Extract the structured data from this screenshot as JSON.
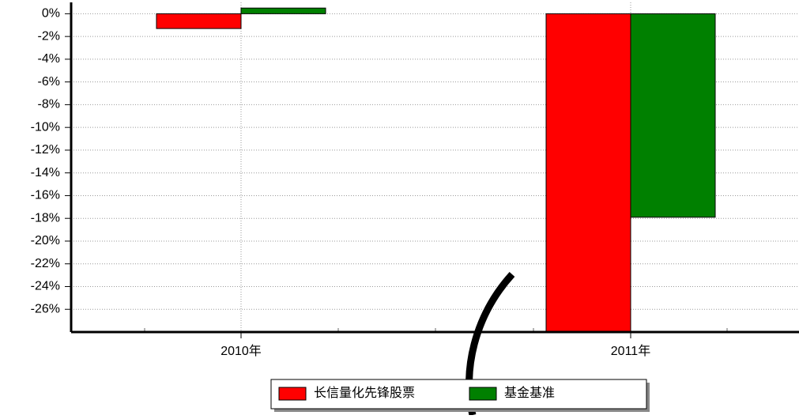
{
  "chart_data": {
    "type": "bar",
    "categories": [
      "2010年",
      "2011年"
    ],
    "series": [
      {
        "name": "长信量化先锋股票",
        "color": "#ff0000",
        "values": [
          -1.3,
          -28
        ]
      },
      {
        "name": "基金基准",
        "color": "#008000",
        "values": [
          0.5,
          -17.9
        ]
      }
    ],
    "ylim": [
      -28,
      1
    ],
    "yticks": [
      {
        "value": 0,
        "label": "0%"
      },
      {
        "value": -2,
        "label": "-2%"
      },
      {
        "value": -4,
        "label": "-4%"
      },
      {
        "value": -6,
        "label": "-6%"
      },
      {
        "value": -8,
        "label": "-8%"
      },
      {
        "value": -10,
        "label": "-10%"
      },
      {
        "value": -12,
        "label": "-12%"
      },
      {
        "value": -14,
        "label": "-14%"
      },
      {
        "value": -16,
        "label": "-16%"
      },
      {
        "value": -18,
        "label": "-18%"
      },
      {
        "value": -20,
        "label": "-20%"
      },
      {
        "value": -22,
        "label": "-22%"
      },
      {
        "value": -24,
        "label": "-24%"
      },
      {
        "value": -26,
        "label": "-26%"
      }
    ],
    "grid": true,
    "legend": "bottom"
  }
}
